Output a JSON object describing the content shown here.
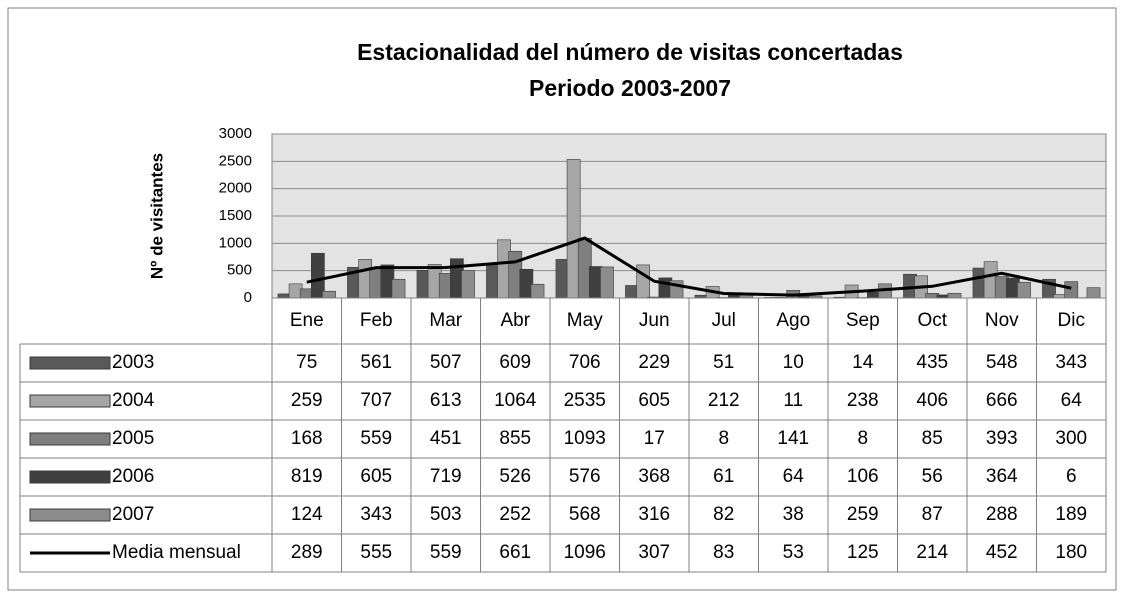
{
  "chart_data": {
    "type": "bar",
    "title": "Estacionalidad del número de visitas concertadas",
    "subtitle": "Periodo 2003-2007",
    "ylabel": "Nº de visitantes",
    "categories": [
      "Ene",
      "Feb",
      "Mar",
      "Abr",
      "May",
      "Jun",
      "Jul",
      "Ago",
      "Sep",
      "Oct",
      "Nov",
      "Dic"
    ],
    "series": [
      {
        "name": "2003",
        "type": "bar",
        "color": "#595959",
        "values": [
          75,
          561,
          507,
          609,
          706,
          229,
          51,
          10,
          14,
          435,
          548,
          343
        ]
      },
      {
        "name": "2004",
        "type": "bar",
        "color": "#a6a6a6",
        "values": [
          259,
          707,
          613,
          1064,
          2535,
          605,
          212,
          11,
          238,
          406,
          666,
          64
        ]
      },
      {
        "name": "2005",
        "type": "bar",
        "color": "#7f7f7f",
        "values": [
          168,
          559,
          451,
          855,
          1093,
          17,
          8,
          141,
          8,
          85,
          393,
          300
        ]
      },
      {
        "name": "2006",
        "type": "bar",
        "color": "#404040",
        "values": [
          819,
          605,
          719,
          526,
          576,
          368,
          61,
          64,
          106,
          56,
          364,
          6
        ]
      },
      {
        "name": "2007",
        "type": "bar",
        "color": "#8c8c8c",
        "values": [
          124,
          343,
          503,
          252,
          568,
          316,
          82,
          38,
          259,
          87,
          288,
          189
        ]
      },
      {
        "name": "Media mensual",
        "type": "line",
        "color": "#000000",
        "values": [
          289,
          555,
          559,
          661,
          1096,
          307,
          83,
          53,
          125,
          214,
          452,
          180
        ]
      }
    ],
    "ylim": [
      0,
      3000
    ],
    "yticks": [
      0,
      500,
      1000,
      1500,
      2000,
      2500,
      3000
    ],
    "grid": true
  }
}
